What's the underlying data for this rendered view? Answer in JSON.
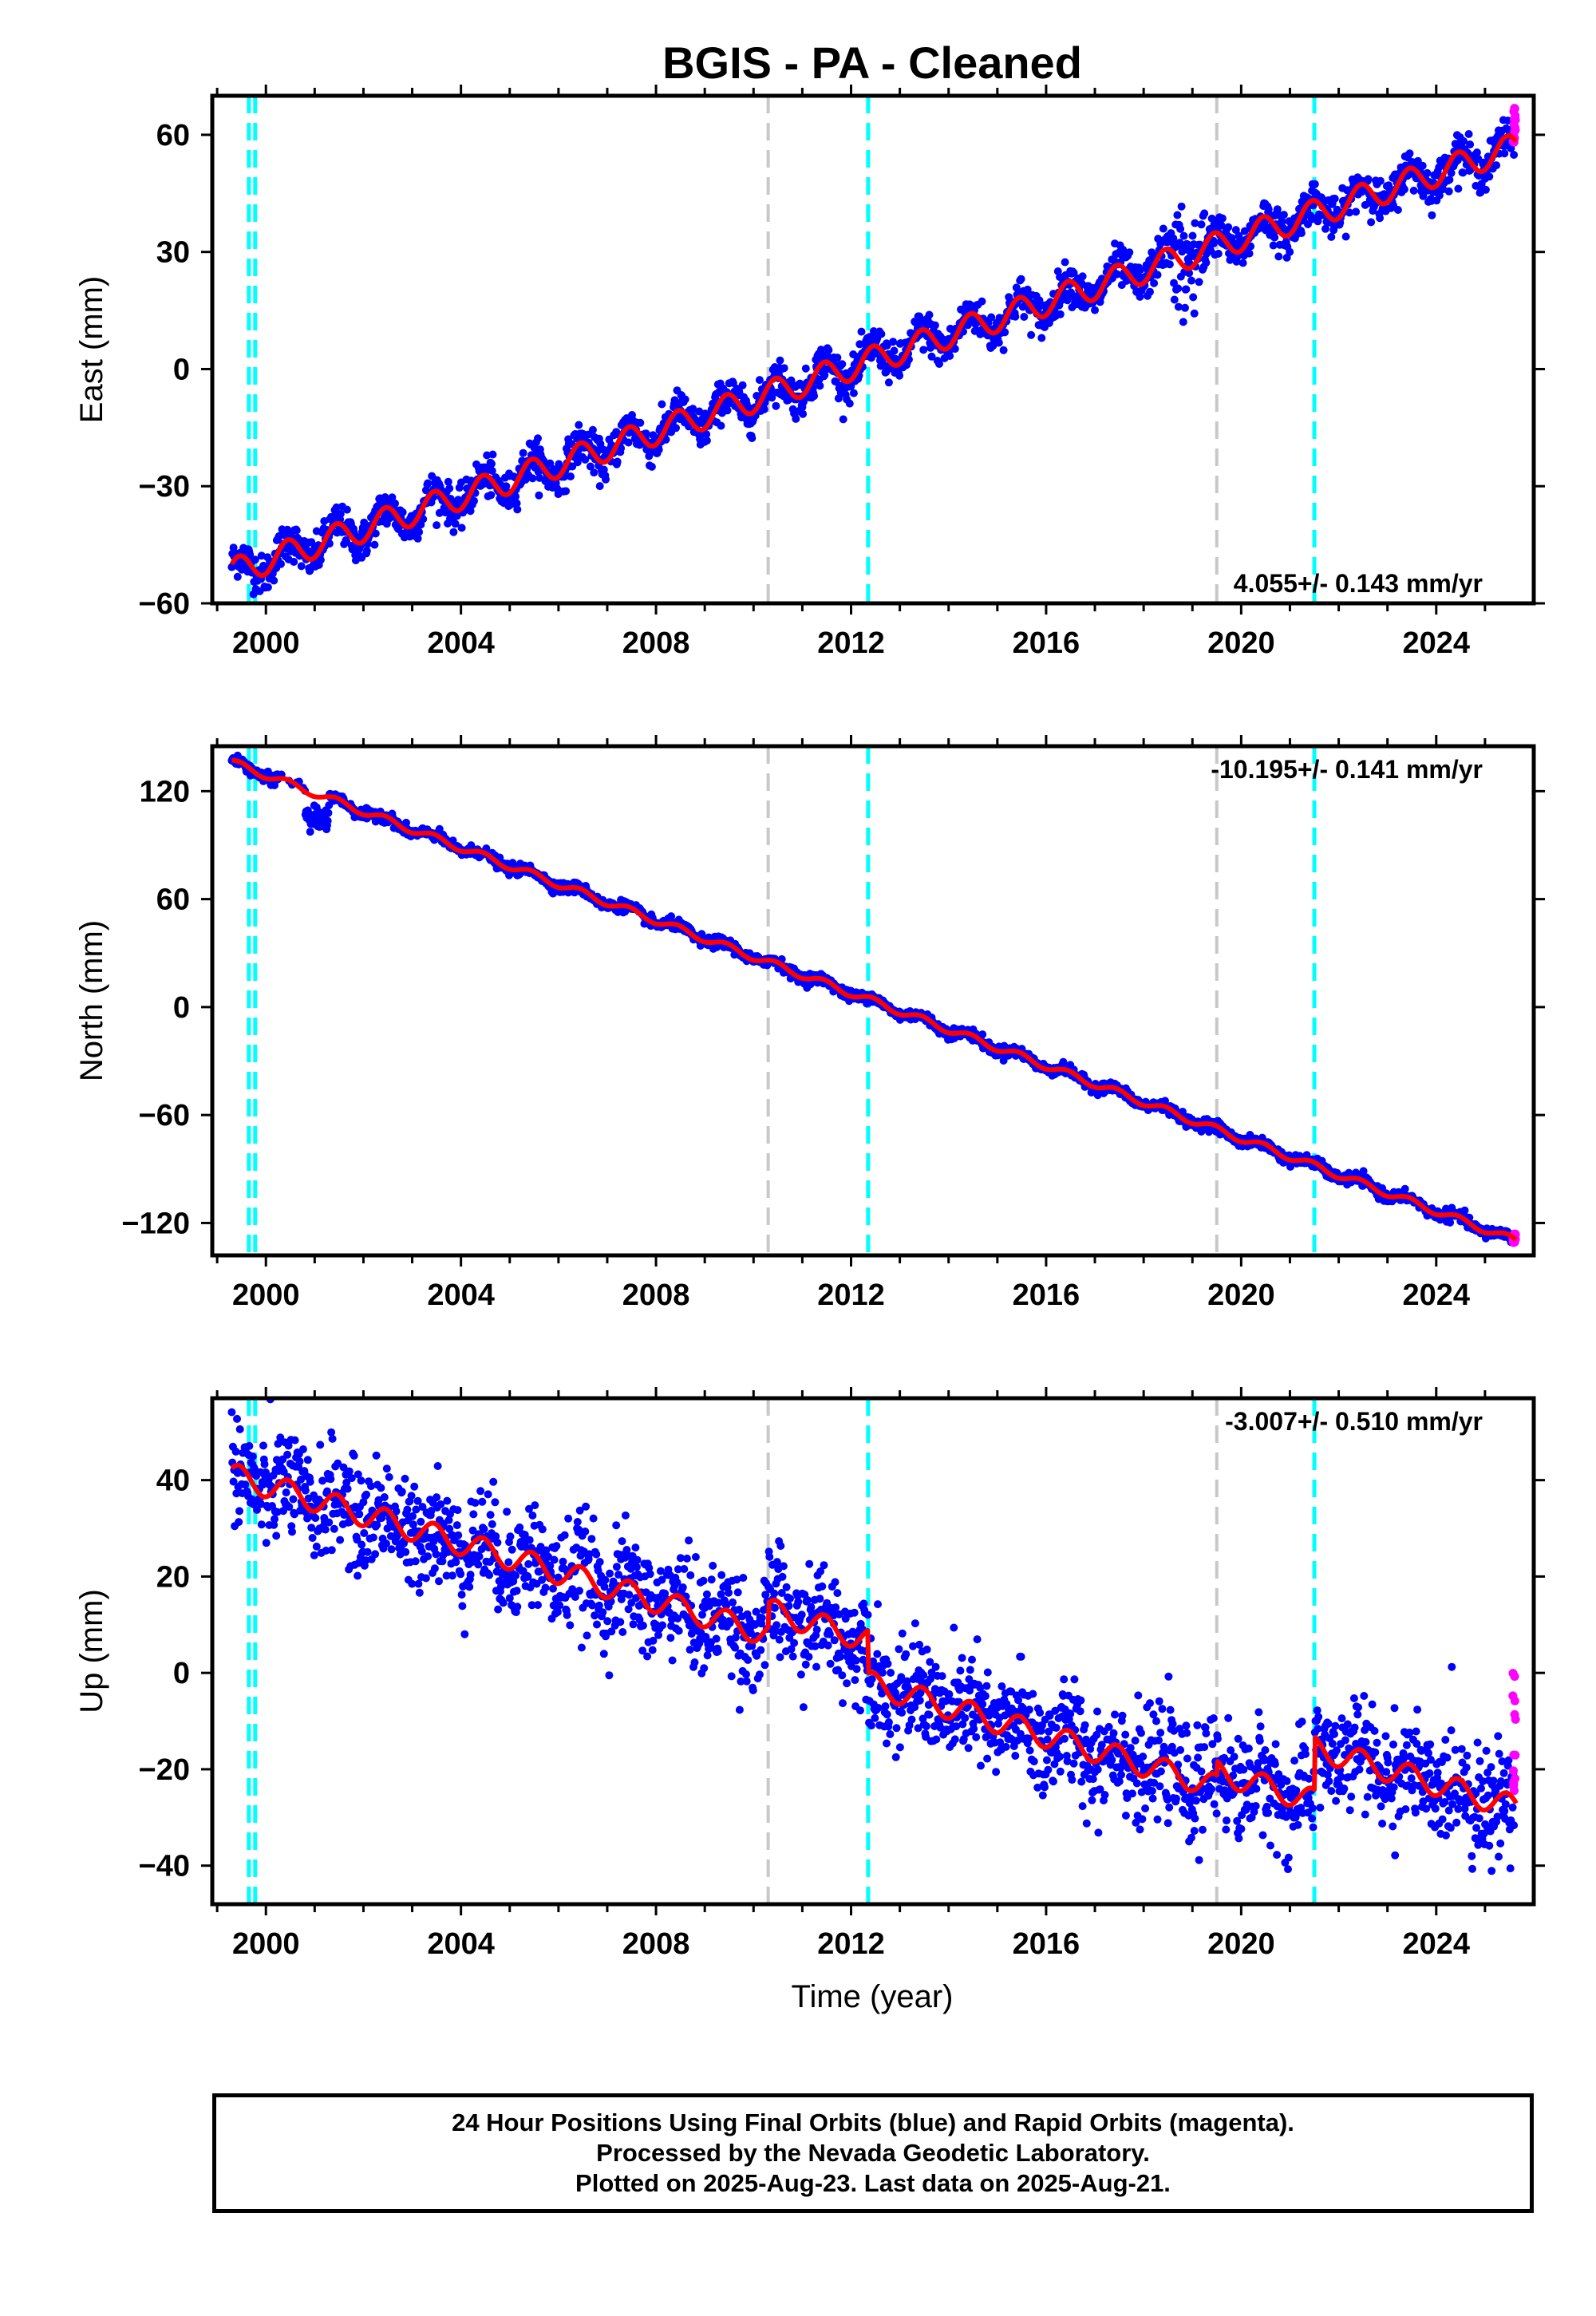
{
  "title": "BGIS  - PA - Cleaned",
  "xlabel": "Time (year)",
  "footer": {
    "line1": "24 Hour Positions Using Final Orbits (blue) and Rapid Orbits (magenta).",
    "line2": "Processed by the Nevada Geodetic Laboratory.",
    "line3": "Plotted on 2025-Aug-23. Last data on 2025-Aug-21."
  },
  "colors": {
    "final_orbits": "#0000ff",
    "rapid_orbits": "#ff00ff",
    "model": "#ff0000",
    "equipment_change": "#00ffff",
    "earthquake": "#c8c8c8"
  },
  "chart_data": [
    {
      "type": "scatter",
      "component": "east",
      "ylabel": "East (mm)",
      "rate_text": "4.055+/- 0.143 mm/yr",
      "xlim": [
        1998.9,
        2026.0
      ],
      "ylim": [
        -60,
        70
      ],
      "xticks": [
        2000,
        2004,
        2008,
        2012,
        2016,
        2020,
        2024
      ],
      "yticks": [
        -60,
        -30,
        0,
        30,
        60
      ],
      "x_tick_labels": [
        "2000",
        "2004",
        "2008",
        "2012",
        "2016",
        "2020",
        "2024"
      ],
      "y_tick_labels": [
        "−60",
        "−30",
        "0",
        "30",
        "60"
      ],
      "grid": false,
      "trend": {
        "start_year": 1999.3,
        "end_year": 2025.64,
        "start_value": -52,
        "end_value": 57,
        "seasonal_amplitude": 3.5
      },
      "noise_mm": 2.5,
      "offsets": [],
      "rapid_points": [
        {
          "x": 2025.6,
          "y_min": 58,
          "y_max": 67
        }
      ],
      "vertical_lines": [
        {
          "x": 1999.65,
          "kind": "equipment_change"
        },
        {
          "x": 1999.78,
          "kind": "equipment_change"
        },
        {
          "x": 2010.3,
          "kind": "earthquake"
        },
        {
          "x": 2012.35,
          "kind": "equipment_change"
        },
        {
          "x": 2019.5,
          "kind": "earthquake"
        },
        {
          "x": 2021.5,
          "kind": "equipment_change"
        }
      ],
      "series": [
        {
          "name": "Final Orbits",
          "x": [
            1999.3,
            2000.0,
            2002.0,
            2004.0,
            2006.0,
            2008.0,
            2010.0,
            2012.0,
            2014.0,
            2016.0,
            2018.0,
            2020.0,
            2022.0,
            2024.0,
            2025.5
          ],
          "y": [
            -52,
            -48,
            -40,
            -32,
            -24,
            -16,
            -8,
            0,
            8,
            16,
            25,
            33,
            41,
            49,
            57
          ]
        },
        {
          "name": "Model",
          "x": [
            1999.3,
            2012.35,
            2025.64
          ],
          "y": [
            -52,
            1,
            57
          ]
        }
      ]
    },
    {
      "type": "scatter",
      "component": "north",
      "ylabel": "North (mm)",
      "rate_text": "-10.195+/- 0.141 mm/yr",
      "xlim": [
        1998.9,
        2026.0
      ],
      "ylim": [
        -138,
        145
      ],
      "xticks": [
        2000,
        2004,
        2008,
        2012,
        2016,
        2020,
        2024
      ],
      "yticks": [
        -120,
        -60,
        0,
        60,
        120
      ],
      "x_tick_labels": [
        "2000",
        "2004",
        "2008",
        "2012",
        "2016",
        "2020",
        "2024"
      ],
      "y_tick_labels": [
        "−120",
        "−60",
        "0",
        "60",
        "120"
      ],
      "grid": false,
      "trend": {
        "start_year": 1999.3,
        "end_year": 2025.64,
        "start_value": 136,
        "end_value": -130,
        "seasonal_amplitude": 2.0
      },
      "noise_mm": 1.5,
      "offsets": [],
      "rapid_points": [
        {
          "x": 2025.6,
          "y_min": -131,
          "y_max": -126
        }
      ],
      "vertical_lines": [
        {
          "x": 1999.65,
          "kind": "equipment_change"
        },
        {
          "x": 1999.78,
          "kind": "equipment_change"
        },
        {
          "x": 2010.3,
          "kind": "earthquake"
        },
        {
          "x": 2012.35,
          "kind": "equipment_change"
        },
        {
          "x": 2019.5,
          "kind": "earthquake"
        },
        {
          "x": 2021.5,
          "kind": "equipment_change"
        }
      ],
      "series": [
        {
          "name": "Final Orbits",
          "x": [
            1999.3,
            2000.0,
            2001.0,
            2004.0,
            2008.0,
            2012.0,
            2016.0,
            2020.0,
            2024.0,
            2025.5
          ],
          "y": [
            136,
            128,
            105,
            88,
            45,
            0,
            -42,
            -82,
            -120,
            -130
          ]
        },
        {
          "name": "Model",
          "x": [
            1999.3,
            2012.35,
            2025.64
          ],
          "y": [
            136,
            0,
            -130
          ]
        }
      ]
    },
    {
      "type": "scatter",
      "component": "up",
      "ylabel": "Up (mm)",
      "rate_text": "-3.007+/- 0.510 mm/yr",
      "xlim": [
        1998.9,
        2026.0
      ],
      "ylim": [
        -48,
        57
      ],
      "xticks": [
        2000,
        2004,
        2008,
        2012,
        2016,
        2020,
        2024
      ],
      "yticks": [
        -40,
        -20,
        0,
        20,
        40
      ],
      "x_tick_labels": [
        "2000",
        "2004",
        "2008",
        "2012",
        "2016",
        "2020",
        "2024"
      ],
      "y_tick_labels": [
        "−40",
        "−20",
        "0",
        "20",
        "40"
      ],
      "grid": false,
      "trend": {
        "start_year": 1999.3,
        "end_year": 2025.64,
        "start_value": 41,
        "end_value": -28,
        "seasonal_amplitude": 2.5
      },
      "noise_mm": 5.5,
      "offsets": [
        {
          "x": 2010.3,
          "delta": 5
        },
        {
          "x": 2012.35,
          "delta": -9
        },
        {
          "x": 2019.5,
          "delta": 3
        },
        {
          "x": 2021.5,
          "delta": 11
        }
      ],
      "rapid_points": [
        {
          "x": 2025.6,
          "y_min": -25,
          "y_max": 0
        }
      ],
      "vertical_lines": [
        {
          "x": 1999.65,
          "kind": "equipment_change"
        },
        {
          "x": 1999.78,
          "kind": "equipment_change"
        },
        {
          "x": 2010.3,
          "kind": "earthquake"
        },
        {
          "x": 2012.35,
          "kind": "equipment_change"
        },
        {
          "x": 2019.5,
          "kind": "earthquake"
        },
        {
          "x": 2021.5,
          "kind": "equipment_change"
        }
      ],
      "series": [
        {
          "name": "Final Orbits",
          "x": [
            1999.3,
            2002.0,
            2004.0,
            2008.0,
            2010.0,
            2012.0,
            2012.5,
            2016.0,
            2019.0,
            2021.0,
            2022.0,
            2024.0,
            2025.5
          ],
          "y": [
            41,
            30,
            25,
            14,
            8,
            8,
            -4,
            -15,
            -25,
            -26,
            -20,
            -15,
            -28
          ]
        },
        {
          "name": "Model",
          "x": [
            1999.3,
            2010.3,
            2012.35,
            2021.5,
            2025.64
          ],
          "y": [
            41,
            8,
            -3,
            -26,
            -28
          ]
        }
      ]
    }
  ]
}
